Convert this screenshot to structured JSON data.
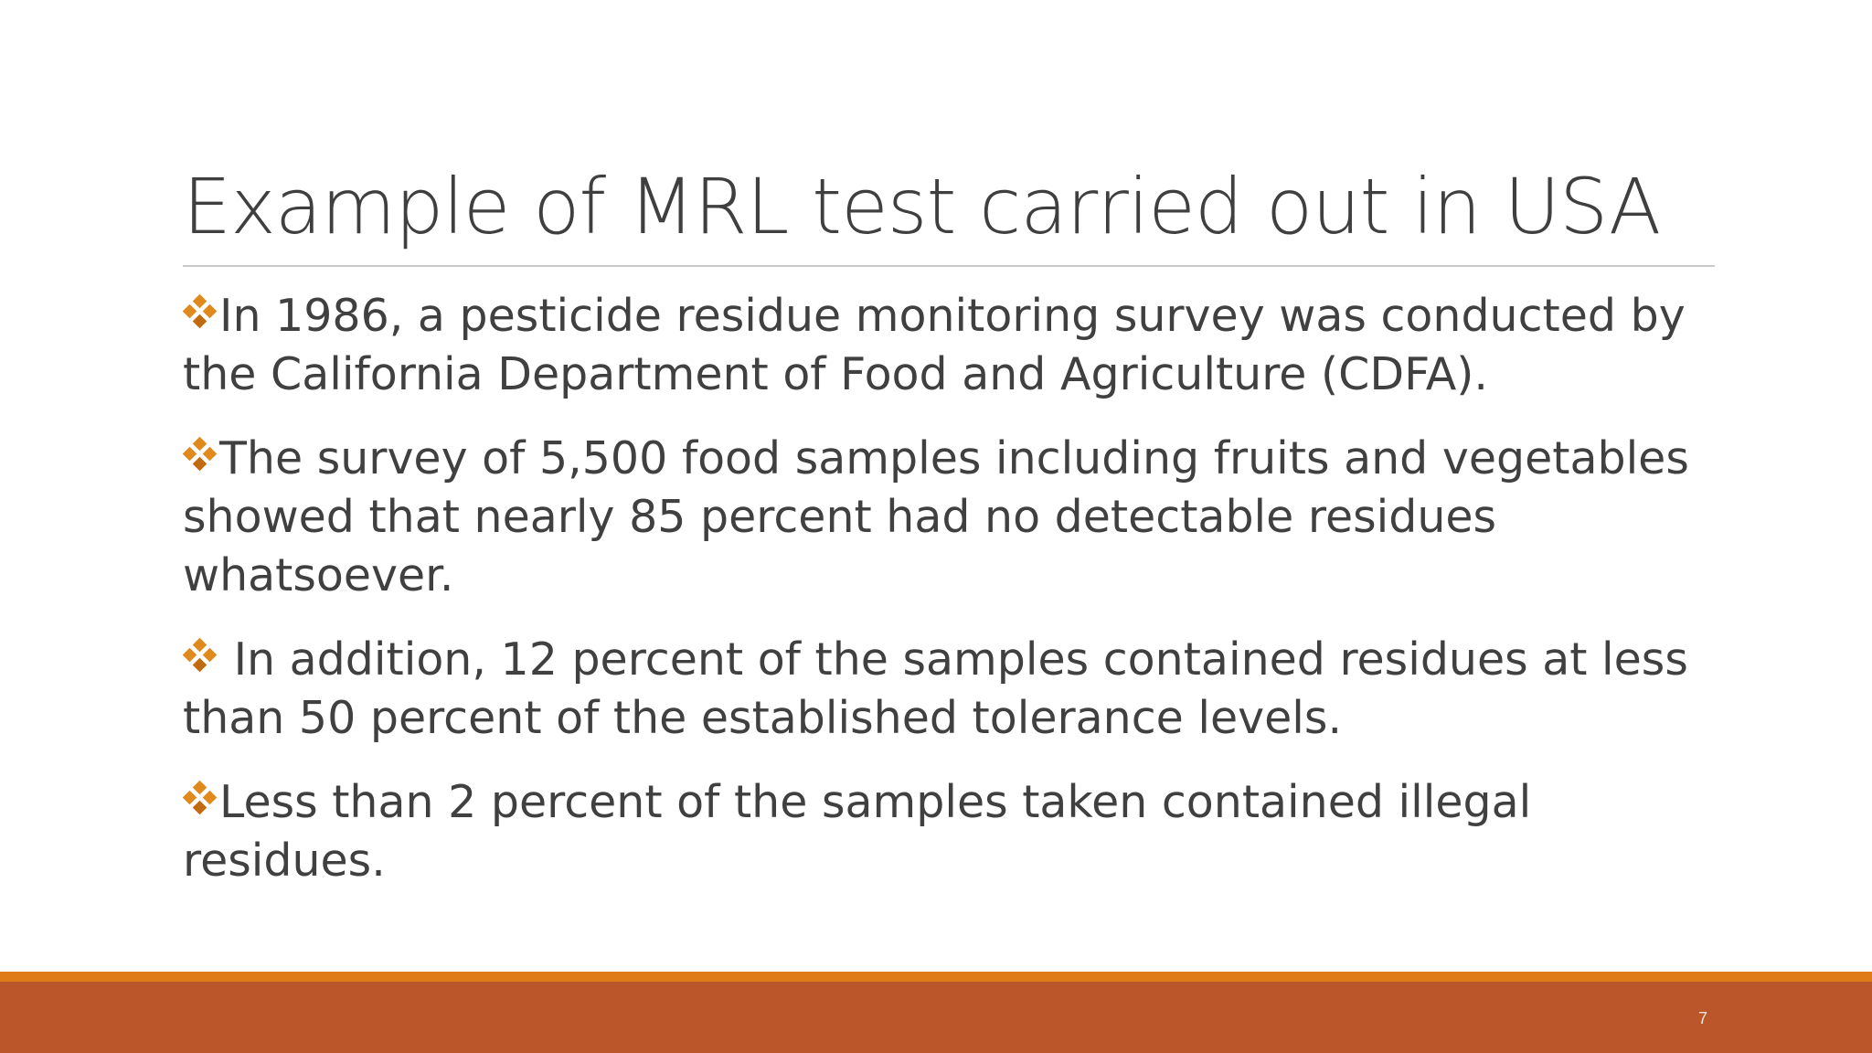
{
  "slide": {
    "title": "Example of MRL test carried out in USA",
    "page_number": "7",
    "colors": {
      "accent_orange": "#e07b1a",
      "footer_rust": "#bb562a",
      "bullet_orange": "#e08a1e",
      "text": "#404040"
    },
    "bullet_icon": "four-diamond-icon",
    "bullets": [
      {
        "text": "In 1986, a pesticide residue monitoring survey was conducted by the California Department of Food and Agriculture (CDFA)."
      },
      {
        "text": "The survey of 5,500 food samples including fruits and vegetables showed that nearly 85 percent had no detectable residues whatsoever."
      },
      {
        "text": " In addition, 12 percent of the samples contained residues at less than 50 percent of the established tolerance levels."
      },
      {
        "text": "Less than 2 percent of the samples taken contained illegal residues."
      }
    ]
  }
}
